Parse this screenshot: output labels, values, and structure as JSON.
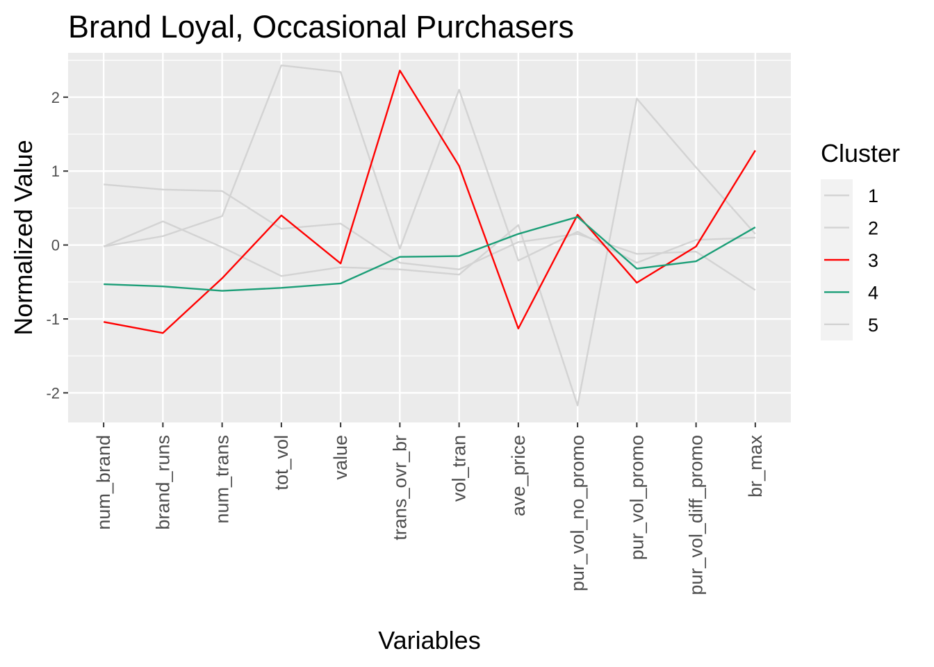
{
  "chart_data": {
    "type": "line",
    "title": "Brand Loyal, Occasional Purchasers",
    "xlabel": "Variables",
    "ylabel": "Normalized Value",
    "categories": [
      "num_brand",
      "brand_runs",
      "num_trans",
      "tot_vol",
      "value",
      "trans_ovr_br",
      "vol_tran",
      "ave_price",
      "pur_vol_no_promo",
      "pur_vol_promo",
      "pur_vol_diff_promo",
      "br_max"
    ],
    "ylim": [
      -2.4,
      2.6
    ],
    "yticks": [
      -2,
      -1,
      0,
      1,
      2
    ],
    "ytick_labels": [
      "-2",
      "-1",
      "0",
      "1",
      "2"
    ],
    "grid": true,
    "legend": {
      "title": "Cluster",
      "position": "right"
    },
    "series": [
      {
        "name": "1",
        "color": "#d3d3d3",
        "values": [
          0.82,
          0.75,
          0.73,
          0.22,
          0.29,
          -0.24,
          -0.33,
          0.04,
          0.15,
          -0.12,
          -0.09,
          -0.61
        ]
      },
      {
        "name": "2",
        "color": "#d3d3d3",
        "values": [
          -0.02,
          0.32,
          -0.03,
          -0.42,
          -0.3,
          -0.33,
          -0.4,
          0.27,
          -2.17,
          1.98,
          1.05,
          0.15
        ]
      },
      {
        "name": "3",
        "color": "#ff0000",
        "values": [
          -1.04,
          -1.19,
          -0.45,
          0.4,
          -0.25,
          2.36,
          1.07,
          -1.13,
          0.41,
          -0.51,
          -0.02,
          1.28
        ]
      },
      {
        "name": "4",
        "color": "#1b9e77",
        "values": [
          -0.53,
          -0.56,
          -0.62,
          -0.58,
          -0.52,
          -0.16,
          -0.15,
          0.15,
          0.38,
          -0.32,
          -0.22,
          0.24
        ]
      },
      {
        "name": "5",
        "color": "#d3d3d3",
        "values": [
          -0.02,
          0.12,
          0.39,
          2.43,
          2.34,
          -0.05,
          2.1,
          -0.21,
          0.18,
          -0.24,
          0.07,
          0.1
        ]
      }
    ]
  }
}
